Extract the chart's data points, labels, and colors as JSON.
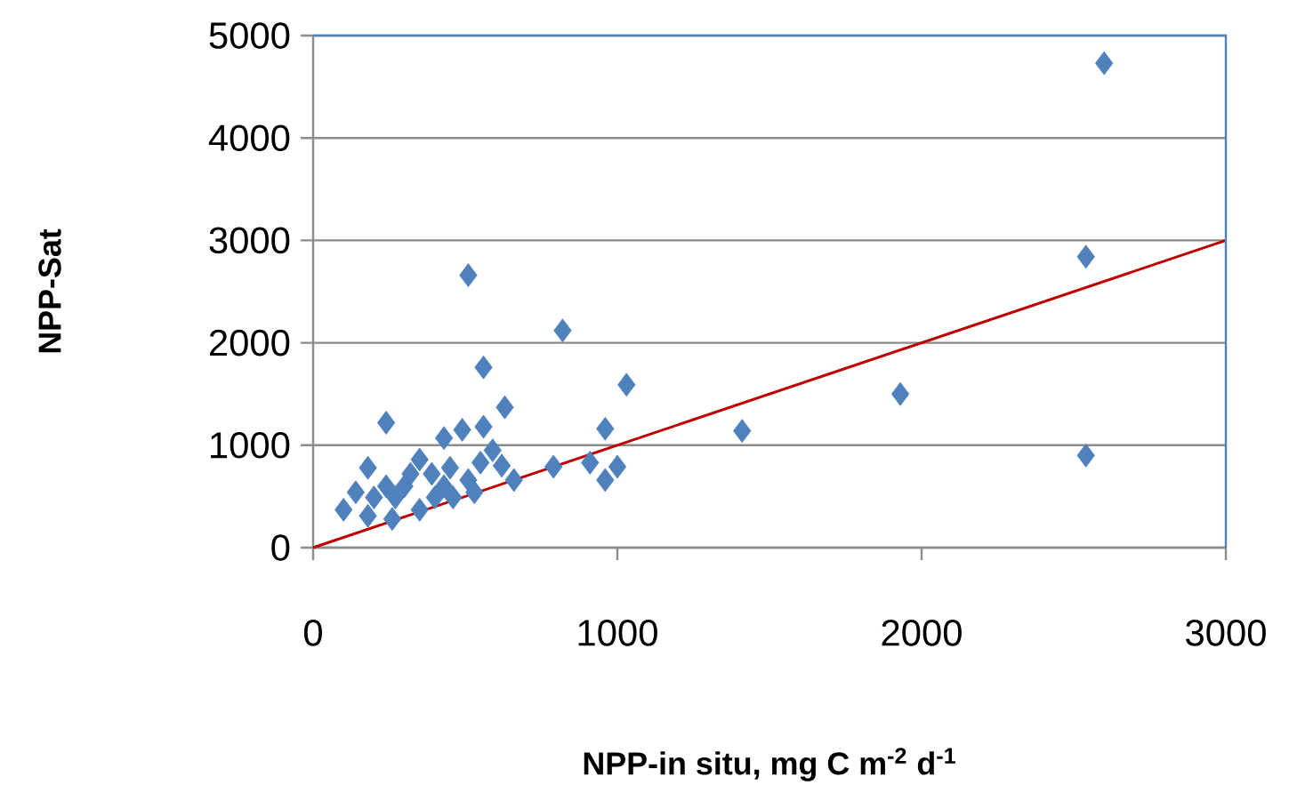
{
  "chart_data": {
    "type": "scatter",
    "xlabel": "NPP-in situ, mg C m$^{-2}$ d$^{-1}$",
    "ylabel": "NPP-Sat",
    "xlim": [
      0,
      3000
    ],
    "ylim": [
      0,
      5000
    ],
    "xticks": [
      0,
      1000,
      2000,
      3000
    ],
    "yticks": [
      0,
      1000,
      2000,
      3000,
      4000,
      5000
    ],
    "grid": "y",
    "marker": "diamond",
    "legend": false,
    "series": [
      {
        "color": "#4f81bd",
        "x": [
          2600,
          2540,
          2540,
          1930,
          1410,
          510,
          820,
          560,
          1030,
          630,
          240,
          960,
          790,
          910,
          1000,
          960,
          660,
          560,
          490,
          430,
          590,
          620,
          180,
          350,
          320,
          390,
          450,
          510,
          100,
          140,
          200,
          260,
          180,
          270,
          350,
          300,
          430,
          460,
          530,
          400,
          240,
          550
        ],
        "values": [
          4730,
          2840,
          900,
          1500,
          1140,
          2660,
          2120,
          1760,
          1590,
          1370,
          1220,
          1160,
          790,
          830,
          790,
          660,
          660,
          1180,
          1150,
          1070,
          950,
          800,
          780,
          860,
          720,
          720,
          780,
          660,
          370,
          540,
          490,
          280,
          310,
          490,
          370,
          600,
          600,
          490,
          540,
          490,
          600,
          830
        ]
      },
      {
        "type": "line",
        "color": "#c00000",
        "marker": "none",
        "x": [
          0,
          3000
        ],
        "values": [
          0,
          3000
        ]
      }
    ]
  }
}
